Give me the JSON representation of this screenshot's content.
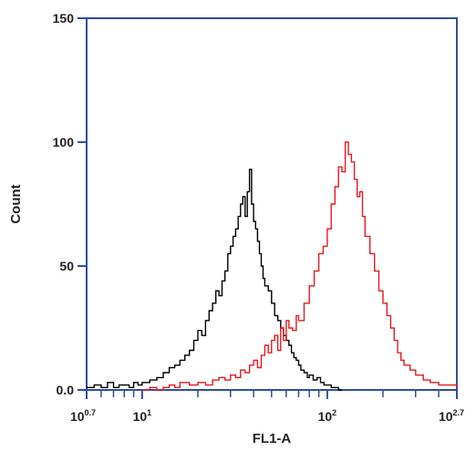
{
  "chart_data": {
    "type": "line",
    "title": "",
    "xlabel": "FL1-A",
    "ylabel": "Count",
    "x_scale": "log10",
    "xlim": [
      5.0119,
      501.19
    ],
    "ylim": [
      0,
      150
    ],
    "grid": false,
    "x_ticks": [
      {
        "value": 5.0119,
        "base": "10",
        "exp": "0.7"
      },
      {
        "value": 10,
        "base": "10",
        "exp": "1"
      },
      {
        "value": 100,
        "base": "10",
        "exp": "2"
      },
      {
        "value": 501.19,
        "base": "10",
        "exp": "2.7"
      }
    ],
    "y_ticks": [
      {
        "value": 0,
        "label": "0.0"
      },
      {
        "value": 50,
        "label": "50"
      },
      {
        "value": 100,
        "label": "100"
      },
      {
        "value": 150,
        "label": "150"
      }
    ],
    "minor_x_ticks": [
      6,
      7,
      8,
      9,
      20,
      30,
      40,
      50,
      60,
      70,
      80,
      90,
      200,
      300,
      400
    ],
    "series": [
      {
        "color": "#000000",
        "x": [
          5.0,
          5.5,
          6.0,
          6.5,
          7.0,
          7.5,
          8.0,
          8.5,
          9.0,
          9.5,
          10.0,
          11.0,
          12.0,
          13.0,
          14.0,
          15.0,
          16.0,
          17.0,
          18.0,
          19.0,
          20.0,
          21.0,
          22.0,
          23.0,
          24.0,
          25.0,
          26.0,
          27.0,
          28.0,
          29.0,
          30.0,
          31.0,
          32.0,
          33.0,
          34.0,
          35.0,
          36.0,
          37.0,
          38.0,
          39.0,
          40.0,
          41.0,
          42.0,
          43.0,
          44.0,
          45.0,
          46.0,
          48.0,
          50.0,
          52.0,
          54.0,
          56.0,
          58.0,
          60.0,
          62.0,
          64.0,
          66.0,
          68.0,
          70.0,
          72.0,
          75.0,
          78.0,
          80.0,
          84.0,
          88.0,
          92.0,
          96.0,
          100.0,
          105.0,
          110.0,
          115.0,
          120.0
        ],
        "y": [
          1,
          2,
          1,
          3,
          1,
          2,
          2,
          1,
          3,
          2,
          3,
          4,
          5,
          7,
          9,
          10,
          12,
          14,
          16,
          20,
          24,
          22,
          28,
          32,
          35,
          40,
          38,
          44,
          48,
          55,
          58,
          62,
          65,
          70,
          75,
          78,
          70,
          80,
          89,
          75,
          68,
          65,
          60,
          55,
          50,
          45,
          42,
          40,
          35,
          30,
          28,
          25,
          22,
          20,
          18,
          15,
          13,
          12,
          10,
          8,
          7,
          5,
          6,
          4,
          5,
          3,
          2,
          2,
          1,
          1,
          0,
          0
        ]
      },
      {
        "color": "#e8191f",
        "x": [
          10.0,
          11.0,
          12.0,
          13.0,
          14.0,
          15.0,
          16.0,
          18.0,
          20.0,
          22.0,
          24.0,
          26.0,
          28.0,
          30.0,
          32.0,
          34.0,
          36.0,
          38.0,
          40.0,
          42.0,
          44.0,
          46.0,
          48.0,
          50.0,
          52.0,
          54.0,
          56.0,
          58.0,
          60.0,
          62.0,
          65.0,
          68.0,
          70.0,
          75.0,
          80.0,
          85.0,
          90.0,
          95.0,
          100.0,
          105.0,
          110.0,
          115.0,
          120.0,
          125.0,
          130.0,
          135.0,
          140.0,
          145.0,
          150.0,
          155.0,
          160.0,
          170.0,
          180.0,
          190.0,
          200.0,
          210.0,
          220.0,
          230.0,
          240.0,
          250.0,
          260.0,
          280.0,
          300.0,
          330.0,
          360.0,
          400.0,
          450.0,
          500.0
        ],
        "y": [
          0,
          1,
          0,
          1,
          2,
          1,
          3,
          2,
          3,
          2,
          4,
          5,
          4,
          6,
          5,
          8,
          7,
          10,
          12,
          9,
          14,
          18,
          15,
          20,
          22,
          16,
          25,
          20,
          28,
          25,
          24,
          30,
          28,
          35,
          42,
          48,
          55,
          58,
          65,
          75,
          82,
          90,
          88,
          100,
          95,
          92,
          85,
          78,
          80,
          70,
          62,
          55,
          48,
          40,
          35,
          30,
          25,
          20,
          15,
          12,
          10,
          8,
          6,
          4,
          3,
          2,
          2,
          1
        ]
      }
    ]
  }
}
